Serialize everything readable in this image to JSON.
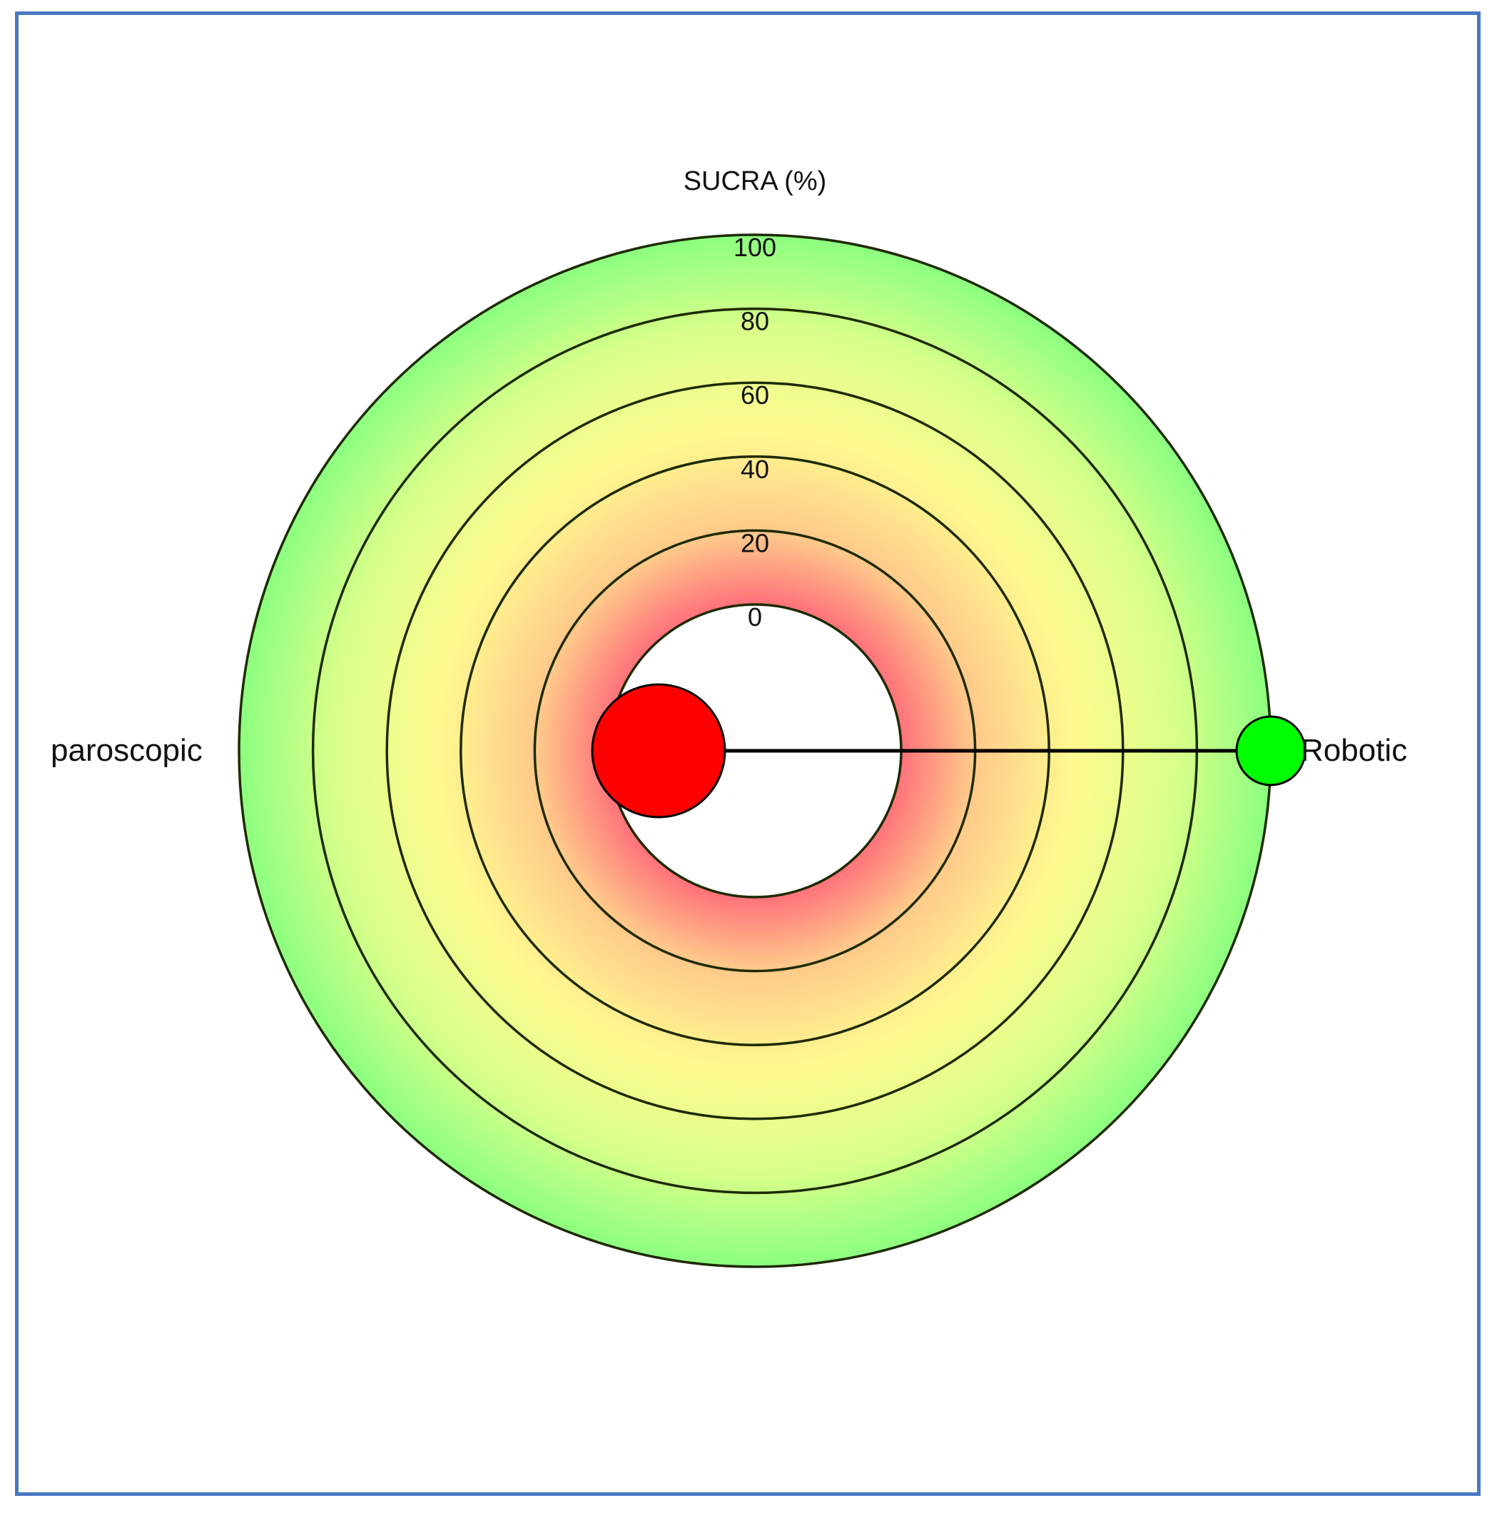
{
  "chart_data": {
    "type": "radial-sucra",
    "title": "SUCRA (%)",
    "rings": [
      "0",
      "20",
      "40",
      "60",
      "80",
      "100"
    ],
    "rlim": [
      0,
      100
    ],
    "treatments": [
      {
        "name": "Laparoscopic",
        "shown_label": "paroscopic",
        "sucra": 0,
        "color": "#ff0000"
      },
      {
        "name": "Robotic",
        "shown_label": "Robotic",
        "sucra": 100,
        "color": "#00ff00"
      }
    ],
    "colors": {
      "low": "#ff7a7a",
      "mid": "#fffa90",
      "high": "#90ff80",
      "ring_stroke": "#1e2a00",
      "frame": "#4a78c2"
    }
  }
}
